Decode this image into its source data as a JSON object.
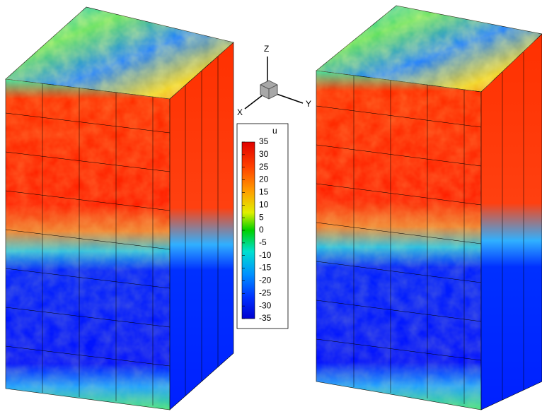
{
  "legend": {
    "title": "u",
    "ticks": [
      "35",
      "30",
      "25",
      "20",
      "15",
      "10",
      "5",
      "0",
      "-5",
      "-10",
      "-15",
      "-20",
      "-25",
      "-30",
      "-35"
    ]
  },
  "axes": {
    "x": "X",
    "y": "Y",
    "z": "Z"
  }
}
